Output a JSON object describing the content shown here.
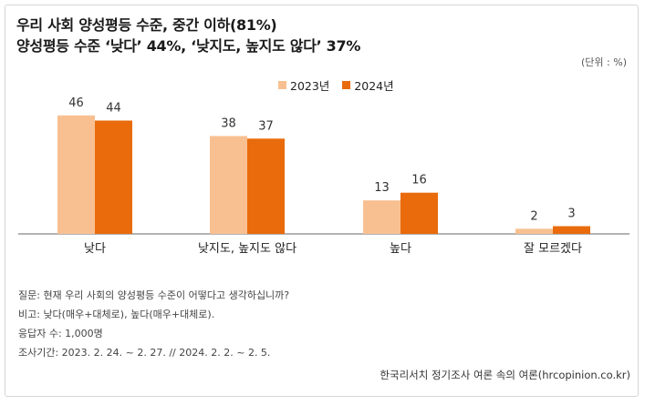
{
  "header": {
    "title_line1": "우리 사회 양성평등 수준, 중간 이하(81%)",
    "title_line2": "양성평등 수준 ‘낮다’ 44%, ‘낮지도, 높지도 않다’ 37%",
    "unit": "(단위 : %)"
  },
  "chart_data": {
    "type": "bar",
    "categories": [
      "낮다",
      "낮지도, 높지도 않다",
      "높다",
      "잘 모르겠다"
    ],
    "series": [
      {
        "name": "2023년",
        "values": [
          46,
          38,
          13,
          2
        ],
        "color": "#f8c091"
      },
      {
        "name": "2024년",
        "values": [
          44,
          37,
          16,
          3
        ],
        "color": "#e96b0c"
      }
    ],
    "ylim": [
      0,
      50
    ],
    "legend_placement": "top-center",
    "grid": false
  },
  "notes": {
    "question": "질문: 현재 우리 사회의 양성평등 수준이 어떻다고 생각하십니까?",
    "remark": "비고: 낮다(매우+대체로), 높다(매우+대체로).",
    "respondents": "응답자 수: 1,000명",
    "period": "조사기간: 2023. 2. 24. ~ 2. 27. //  2024. 2. 2. ~ 2. 5."
  },
  "source": "한국리서치 정기조사 여론 속의 여론(hrcopinion.co.kr)"
}
